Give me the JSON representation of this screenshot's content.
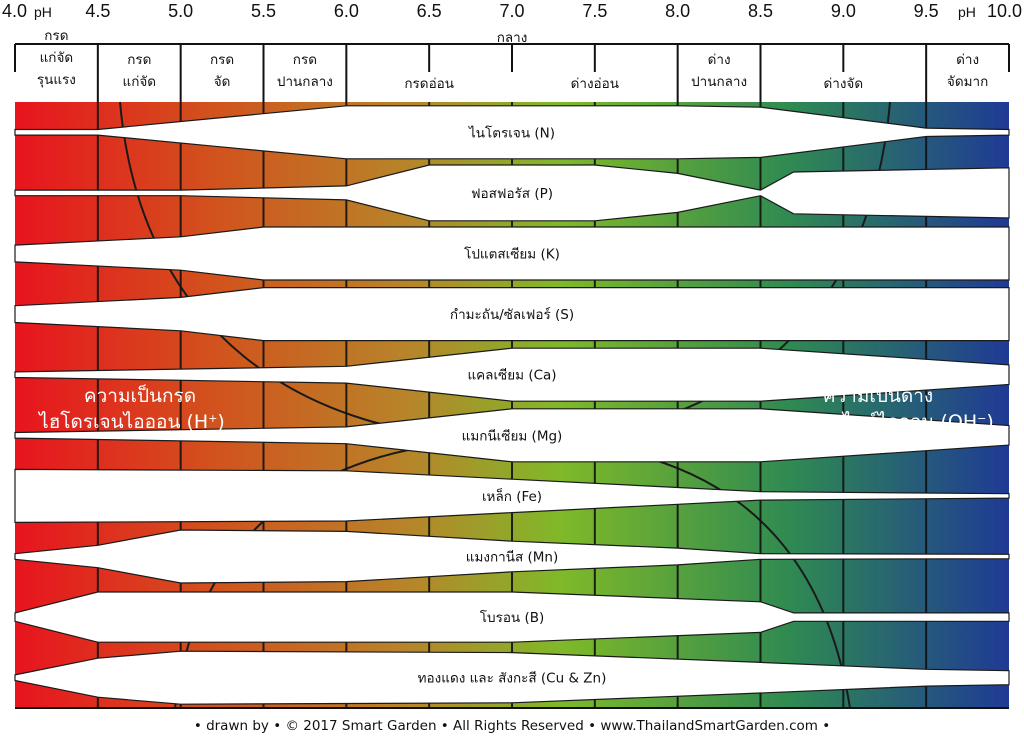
{
  "ph_scale": {
    "ph_left": "pH",
    "ph_right": "pH",
    "ticks": [
      {
        "value": 4.0,
        "label": "4.0"
      },
      {
        "value": 4.5,
        "label": "4.5"
      },
      {
        "value": 5.0,
        "label": "5.0"
      },
      {
        "value": 5.5,
        "label": "5.5"
      },
      {
        "value": 6.0,
        "label": "6.0"
      },
      {
        "value": 6.5,
        "label": "6.5"
      },
      {
        "value": 7.0,
        "label": "7.0"
      },
      {
        "value": 7.5,
        "label": "7.5"
      },
      {
        "value": 8.0,
        "label": "8.0"
      },
      {
        "value": 8.5,
        "label": "8.5"
      },
      {
        "value": 9.0,
        "label": "9.0"
      },
      {
        "value": 9.5,
        "label": "9.5"
      },
      {
        "value": 10.0,
        "label": "10.0"
      }
    ]
  },
  "categories": [
    {
      "from": 4.0,
      "to": 4.5,
      "lines": [
        "กรด",
        "แก่จัด",
        "รุนแรง"
      ]
    },
    {
      "from": 4.5,
      "to": 5.0,
      "lines": [
        "กรด",
        "แก่จัด"
      ]
    },
    {
      "from": 5.0,
      "to": 5.5,
      "lines": [
        "กรด",
        "จัด"
      ]
    },
    {
      "from": 5.5,
      "to": 6.0,
      "lines": [
        "กรด",
        "ปานกลาง"
      ]
    },
    {
      "from": 6.0,
      "to": 7.0,
      "lines": [
        "กรดอ่อน"
      ]
    },
    {
      "from": 7.0,
      "to": 7.0,
      "lines": [
        "กลาง"
      ]
    },
    {
      "from": 7.0,
      "to": 8.0,
      "lines": [
        "ด่างอ่อน"
      ]
    },
    {
      "from": 8.0,
      "to": 8.5,
      "lines": [
        "ด่าง",
        "ปานกลาง"
      ]
    },
    {
      "from": 8.5,
      "to": 9.5,
      "lines": [
        "ด่างจัด"
      ]
    },
    {
      "from": 9.5,
      "to": 10.0,
      "lines": [
        "ด่าง",
        "จัดมาก"
      ]
    }
  ],
  "gradient_colors": [
    "#e8141e",
    "#d2521d",
    "#b6862a",
    "#7fb929",
    "#2f8a52",
    "#1f3a95"
  ],
  "nutrients": [
    {
      "label": "ไนโตรเจน (N)",
      "widths": [
        [
          4.0,
          0.1
        ],
        [
          4.5,
          0.1
        ],
        [
          5.2,
          0.5
        ],
        [
          6.0,
          0.95
        ],
        [
          8.0,
          0.95
        ],
        [
          8.5,
          0.9
        ],
        [
          9.5,
          0.15
        ],
        [
          10.0,
          0.1
        ]
      ]
    },
    {
      "label": "ฟอสฟอรัส (P)",
      "widths": [
        [
          4.0,
          0.1
        ],
        [
          5.0,
          0.1
        ],
        [
          6.0,
          0.25
        ],
        [
          6.5,
          1.0
        ],
        [
          7.5,
          1.0
        ],
        [
          8.0,
          0.7
        ],
        [
          8.5,
          0.1
        ],
        [
          8.7,
          0.75
        ],
        [
          10.0,
          0.9
        ]
      ]
    },
    {
      "label": "โปแตสเซียม (K)",
      "widths": [
        [
          4.0,
          0.3
        ],
        [
          5.0,
          0.6
        ],
        [
          5.5,
          0.95
        ],
        [
          10.0,
          0.95
        ]
      ]
    },
    {
      "label": "กำมะถัน/ซัลเฟอร์ (S)",
      "widths": [
        [
          4.0,
          0.3
        ],
        [
          5.0,
          0.6
        ],
        [
          5.5,
          0.95
        ],
        [
          10.0,
          0.95
        ]
      ]
    },
    {
      "label": "แคลเซียม (Ca)",
      "widths": [
        [
          4.0,
          0.1
        ],
        [
          6.0,
          0.3
        ],
        [
          7.0,
          0.95
        ],
        [
          8.5,
          0.95
        ],
        [
          10.0,
          0.35
        ]
      ]
    },
    {
      "label": "แมกนีเซียม (Mg)",
      "widths": [
        [
          4.0,
          0.1
        ],
        [
          6.0,
          0.3
        ],
        [
          7.0,
          0.95
        ],
        [
          8.5,
          0.95
        ],
        [
          10.0,
          0.35
        ]
      ]
    },
    {
      "label": "เหล็ก (Fe)",
      "widths": [
        [
          4.0,
          0.95
        ],
        [
          6.0,
          0.9
        ],
        [
          7.0,
          0.6
        ],
        [
          8.0,
          0.3
        ],
        [
          8.5,
          0.15
        ],
        [
          10.0,
          0.08
        ]
      ]
    },
    {
      "label": "แมงกานีส (Mn)",
      "widths": [
        [
          4.0,
          0.1
        ],
        [
          4.5,
          0.4
        ],
        [
          5.0,
          0.95
        ],
        [
          6.0,
          0.9
        ],
        [
          7.0,
          0.55
        ],
        [
          8.0,
          0.3
        ],
        [
          8.5,
          0.1
        ],
        [
          10.0,
          0.08
        ]
      ]
    },
    {
      "label": "โบรอน (B)",
      "widths": [
        [
          4.0,
          0.15
        ],
        [
          4.5,
          0.9
        ],
        [
          7.0,
          0.9
        ],
        [
          8.5,
          0.55
        ],
        [
          8.7,
          0.15
        ],
        [
          10.0,
          0.15
        ]
      ]
    },
    {
      "label": "ทองแดง และ สังกะสี (Cu & Zn)",
      "widths": [
        [
          4.0,
          0.1
        ],
        [
          4.5,
          0.7
        ],
        [
          5.0,
          0.95
        ],
        [
          7.0,
          0.9
        ],
        [
          8.5,
          0.55
        ],
        [
          9.5,
          0.3
        ],
        [
          10.0,
          0.25
        ]
      ]
    }
  ],
  "acid_label": {
    "line1": "ความเป็นกรด",
    "line2": "ไฮโดรเจนไอออน (H",
    "sup": "+",
    "close": ")"
  },
  "base_label": {
    "line1": "ความเป็นด่าง",
    "line2": "ไฮดรอกไซด์ไอออน (OH",
    "sup": "−",
    "close": ")"
  },
  "footer": "• drawn by • © 2017 Smart Garden • All Rights Reserved • www.ThailandSmartGarden.com •"
}
